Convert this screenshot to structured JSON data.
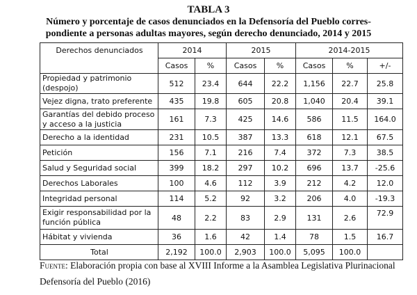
{
  "title": "TABLA 3",
  "subtitle": "Número y porcentaje de casos denunciados en la Defensoría del Pueblo correspondiente a personas adultas mayores, según derecho denunciado, 2014 y 2015",
  "subtitle_line1": "Número y porcentaje de casos denunciados en la Defensoría del Pueblo corres-",
  "subtitle_line2": "pondiente a personas adultas mayores, según derecho denunciado, 2014 y 2015",
  "header": {
    "col0": "Derechos denunciados",
    "groups": [
      "2014",
      "2015",
      "2014-2015"
    ],
    "sub": [
      "Casos",
      "%",
      "Casos",
      "%",
      "Casos",
      "%",
      "+/-"
    ]
  },
  "rows": [
    {
      "label": "Propiedad y patrimonio (despojo)",
      "values": [
        "512",
        "23.4",
        "644",
        "22.2",
        "1,156",
        "22.7",
        "25.8"
      ]
    },
    {
      "label": "Vejez digna, trato preferente",
      "values": [
        "435",
        "19.8",
        "605",
        "20.8",
        "1,040",
        "20.4",
        "39.1"
      ]
    },
    {
      "label": "Garantías del debido proceso y acceso a la justicia",
      "values": [
        "161",
        "7.3",
        "425",
        "14.6",
        "586",
        "11.5",
        "164.0"
      ]
    },
    {
      "label": "Derecho a la identidad",
      "values": [
        "231",
        "10.5",
        "387",
        "13.3",
        "618",
        "12.1",
        "67.5"
      ]
    },
    {
      "label": "Petición",
      "values": [
        "156",
        "7.1",
        "216",
        "7.4",
        "372",
        "7.3",
        "38.5"
      ]
    },
    {
      "label": "Salud y Seguridad social",
      "values": [
        "399",
        "18.2",
        "297",
        "10.2",
        "696",
        "13.7",
        "-25.6"
      ]
    },
    {
      "label": "Derechos Laborales",
      "values": [
        "100",
        "4.6",
        "112",
        "3.9",
        "212",
        "4.2",
        "12.0"
      ]
    },
    {
      "label": "Integridad personal",
      "values": [
        "114",
        "5.2",
        "92",
        "3.2",
        "206",
        "4.0",
        "-19.3"
      ]
    },
    {
      "label": "Exigir responsabilidad por la función pública",
      "values": [
        "48",
        "2.2",
        "83",
        "2.9",
        "131",
        "2.6",
        "72.9"
      ]
    },
    {
      "label": "Hábitat y vivienda",
      "values": [
        "36",
        "1.6",
        "42",
        "1.4",
        "78",
        "1.5",
        "16.7"
      ]
    }
  ],
  "total": {
    "label": "Total",
    "values": [
      "2,192",
      "100.0",
      "2,903",
      "100.0",
      "5,095",
      "100.0",
      ""
    ]
  },
  "source": {
    "label": "Fuente",
    "line1": ": Elaboración propia con base al XVIII Informe a la Asamblea Legislativa Plurinacional",
    "line2": "Defensoría del Pueblo (2016)"
  }
}
